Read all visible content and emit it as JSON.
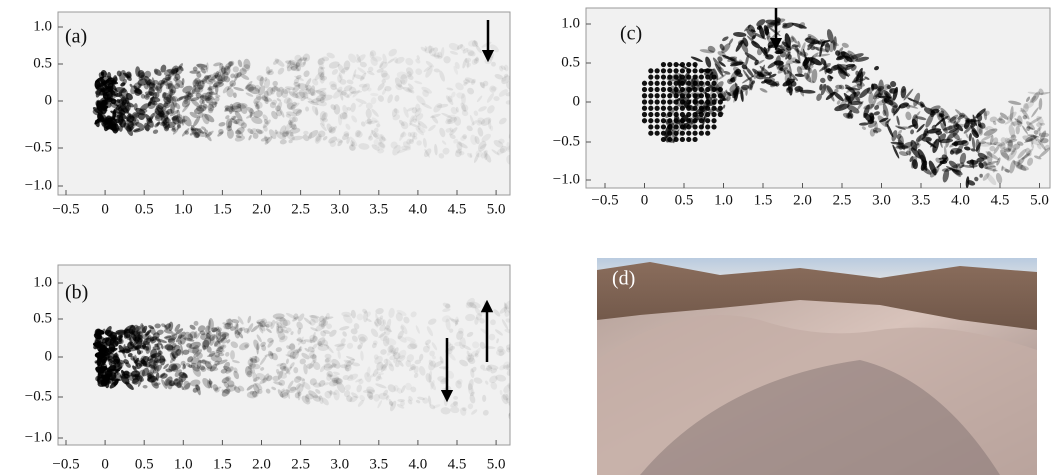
{
  "panels": [
    {
      "label": "(a)",
      "yticks": [
        "1.0",
        "0.5",
        "0",
        "−0.5",
        "−1.0"
      ],
      "xticks": [
        "−0.5",
        "0",
        "0.5",
        "1.0",
        "1.5",
        "2.0",
        "2.5",
        "3.0",
        "3.5",
        "4.0",
        "4.5",
        "5.0"
      ]
    },
    {
      "label": "(b)",
      "yticks": [
        "1.0",
        "0.5",
        "0",
        "−0.5",
        "−1.0"
      ],
      "xticks": [
        "−0.5",
        "0",
        "0.5",
        "1.0",
        "1.5",
        "2.0",
        "2.5",
        "3.0",
        "3.5",
        "4.0",
        "4.5",
        "5.0"
      ]
    },
    {
      "label": "(c)",
      "yticks": [
        "1.0",
        "0.5",
        "0",
        "−0.5",
        "−1.0"
      ],
      "xticks": [
        "−0.5",
        "0",
        "0.5",
        "1.0",
        "1.5",
        "2.0",
        "2.5",
        "3.0",
        "3.5",
        "4.0",
        "4.5",
        "5.0"
      ]
    }
  ],
  "photo": {
    "label": "(d)"
  }
}
